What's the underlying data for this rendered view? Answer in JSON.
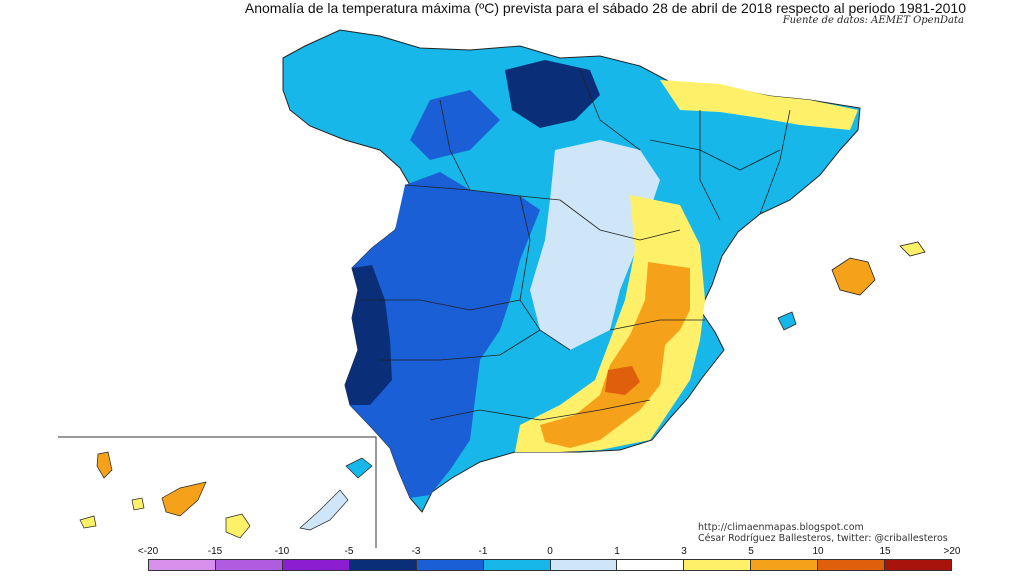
{
  "title": "Anomalía de la temperatura máxima (ºC) prevista para el sábado 28 de abril de 2018 respecto al periodo 1981-2010",
  "source": "Fuente de datos: AEMET OpenData",
  "credits": {
    "url": "http://climaenmapas.blogspot.com",
    "author": "César Rodríguez Ballesteros, twitter: @criballesteros"
  },
  "legend": {
    "labels": [
      "<-20",
      "-15",
      "-10",
      "-5",
      "-3",
      "-1",
      "0",
      "1",
      "3",
      "5",
      "10",
      "15",
      ">20"
    ],
    "colors": [
      "#d890ec",
      "#b05ce0",
      "#8a1ed0",
      "#0a2e78",
      "#1a5fd6",
      "#18b7ea",
      "#cfe6f8",
      "#ffffff",
      "#fff06a",
      "#f6a11a",
      "#e05f0c",
      "#a8140c",
      "#6e3c0e"
    ]
  }
}
